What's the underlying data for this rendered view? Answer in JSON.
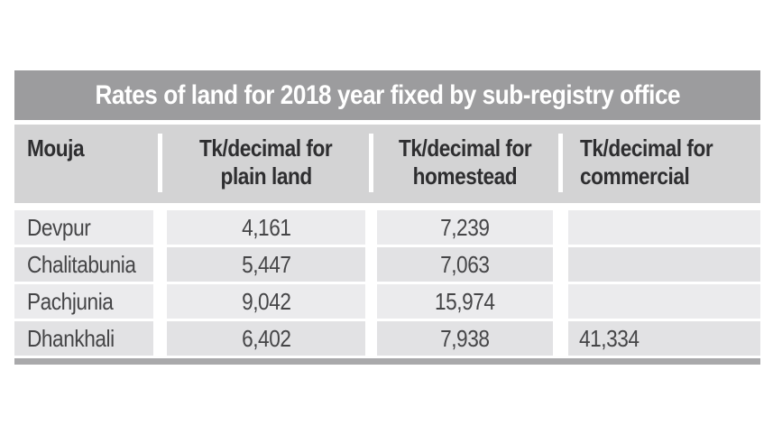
{
  "title": "Rates of land for 2018 year fixed by sub-registry office",
  "header": {
    "columns": [
      {
        "line1": "Mouja",
        "line2": ""
      },
      {
        "line1": "Tk/decimal for",
        "line2": "plain land"
      },
      {
        "line1": "Tk/decimal for",
        "line2": "homestead"
      },
      {
        "line1": "Tk/decimal for",
        "line2": "commercial"
      }
    ]
  },
  "rows": [
    [
      "Devpur",
      "4,161",
      "7,239",
      ""
    ],
    [
      "Chalitabunia",
      "5,447",
      "7,063",
      ""
    ],
    [
      "Pachjunia",
      "9,042",
      "15,974",
      ""
    ],
    [
      "Dhankhali",
      "6,402",
      "7,938",
      "41,334"
    ]
  ],
  "colors": {
    "title_bg": "#9c9c9e",
    "title_text": "#ffffff",
    "header_bg": "#d3d3d4",
    "header_text": "#2e2e30",
    "row_light": "#ebebed",
    "row_dark": "#e2e2e4",
    "cell_text": "#454547",
    "bottom_rule": "#a9a9ab"
  },
  "chart_data": {
    "type": "table",
    "title": "Rates of land for 2018 year fixed by sub-registry office",
    "columns": [
      "Mouja",
      "Tk/decimal for plain land",
      "Tk/decimal for homestead",
      "Tk/decimal for commercial"
    ],
    "rows": [
      [
        "Devpur",
        4161,
        7239,
        null
      ],
      [
        "Chalitabunia",
        5447,
        7063,
        null
      ],
      [
        "Pachjunia",
        9042,
        15974,
        null
      ],
      [
        "Dhankhali",
        6402,
        7938,
        41334
      ]
    ]
  }
}
